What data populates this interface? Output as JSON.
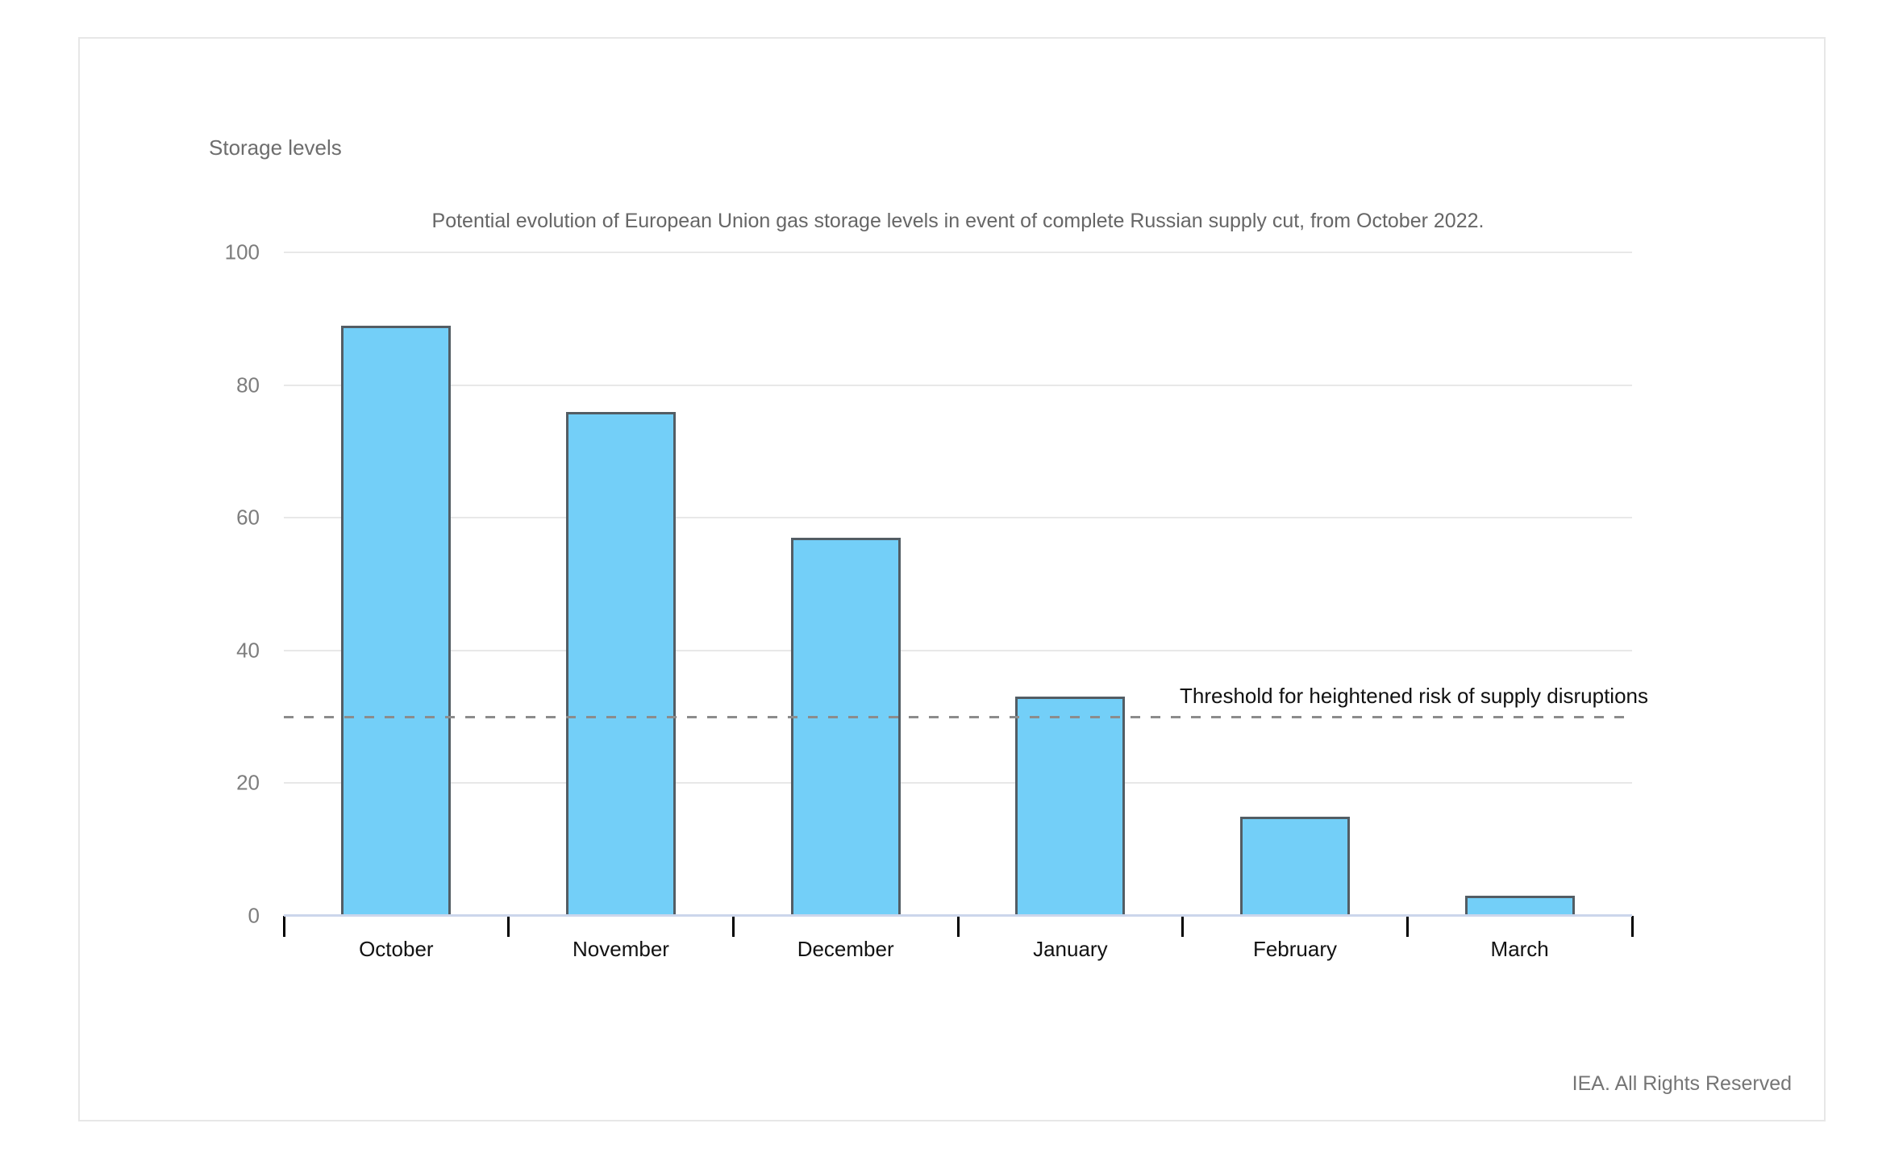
{
  "card": {
    "background": "#ffffff",
    "border_color": "#e7e7e7"
  },
  "chart_data": {
    "type": "bar",
    "title": "Potential evolution of European Union gas storage levels in event of complete Russian supply cut, from October 2022.",
    "ylabel": "Storage levels",
    "xlabel": "",
    "categories": [
      "October",
      "November",
      "December",
      "January",
      "February",
      "March"
    ],
    "values": [
      89,
      76,
      57,
      33,
      15,
      3
    ],
    "ylim": [
      0,
      100
    ],
    "yticks": [
      0,
      20,
      40,
      60,
      80,
      100
    ],
    "grid": "horizontal-on",
    "legend": "none",
    "threshold": {
      "value": 30,
      "label": "Threshold for heightened risk of supply disruptions",
      "line_style": "dashed"
    },
    "colors": {
      "bar_fill": "#73CFF8",
      "bar_border": "#535D64",
      "gridline": "#e8e8e8",
      "axis_line": "#ccd6eb",
      "threshold_line": "#8c8c8c",
      "tick_mark": "#000000"
    }
  },
  "footer": {
    "credit": "IEA. All Rights Reserved"
  }
}
